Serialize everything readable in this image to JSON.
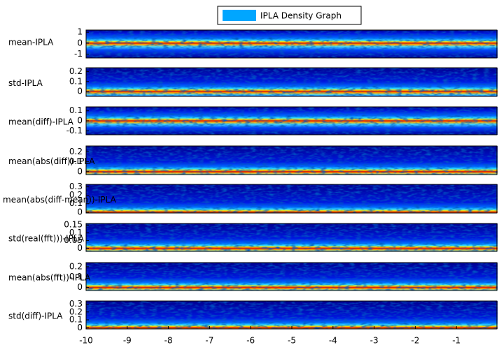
{
  "chart_data": [
    {
      "type": "heatmap",
      "legend": "IPLA Density Graph",
      "ylabel": "mean-IPLA",
      "ylim": [
        -1.35,
        1.2
      ],
      "yticks": [
        1,
        0,
        -1
      ]
    },
    {
      "type": "heatmap",
      "ylabel": "std-IPLA",
      "ylim": [
        -0.05,
        0.24
      ],
      "yticks": [
        0.2,
        0.1,
        0
      ]
    },
    {
      "type": "heatmap",
      "ylabel": "mean(diff)-IPLA",
      "ylim": [
        -0.14,
        0.14
      ],
      "yticks": [
        0.1,
        0,
        -0.1
      ]
    },
    {
      "type": "heatmap",
      "ylabel": "mean(abs(diff))-IPLA",
      "ylim": [
        -0.03,
        0.26
      ],
      "yticks": [
        0.2,
        0.1,
        0
      ]
    },
    {
      "type": "heatmap",
      "ylabel": "mean(abs(diff-mean))-IPLA",
      "ylim": [
        -0.01,
        0.33
      ],
      "yticks": [
        0.3,
        0.2,
        0.1,
        0
      ]
    },
    {
      "type": "heatmap",
      "ylabel": "std(real(fft)))-IPLA",
      "ylim": [
        -0.02,
        0.16
      ],
      "yticks": [
        0.15,
        0.1,
        0.05,
        0
      ]
    },
    {
      "type": "heatmap",
      "ylabel": "mean(abs(fft))-IPLA",
      "ylim": [
        -0.03,
        0.24
      ],
      "yticks": [
        0.2,
        0.1,
        0
      ]
    },
    {
      "type": "heatmap",
      "ylabel": "std(diff)-IPLA",
      "ylim": [
        -0.015,
        0.34
      ],
      "yticks": [
        0.3,
        0.2,
        0.1,
        0
      ],
      "xlim": [
        -10,
        0
      ],
      "xticks": [
        -10,
        -9,
        -8,
        -7,
        -6,
        -5,
        -4,
        -3,
        -2,
        -1
      ]
    }
  ]
}
